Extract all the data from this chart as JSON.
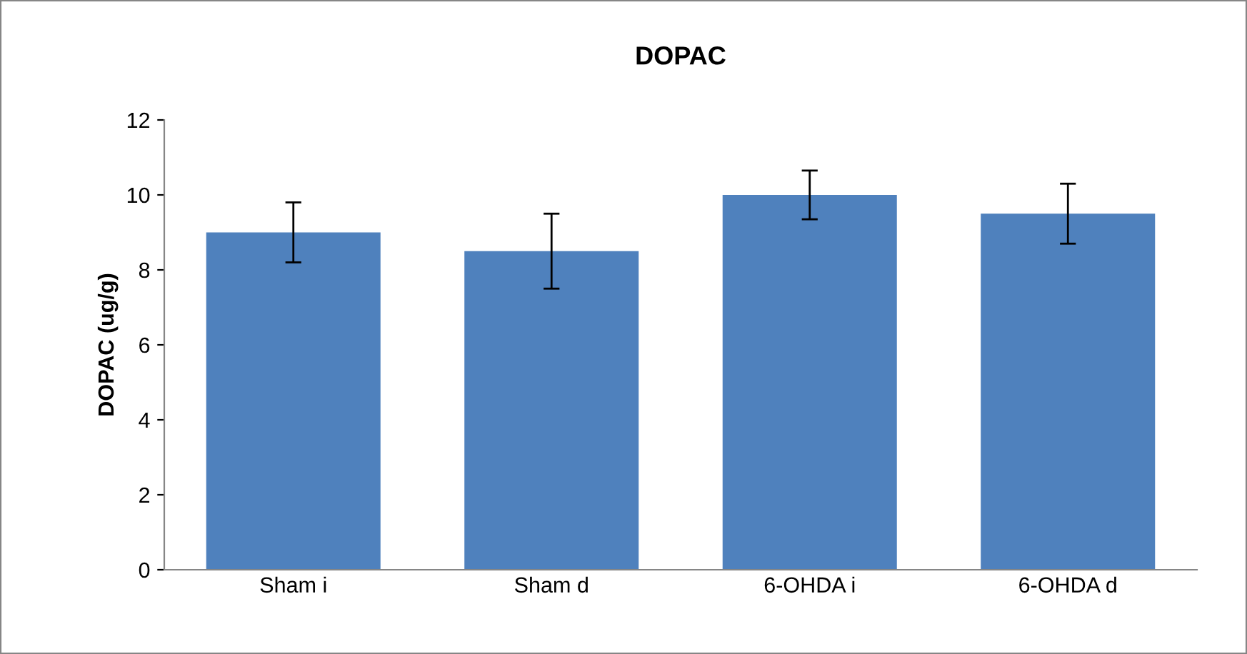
{
  "chart_data": {
    "type": "bar",
    "title": "DOPAC",
    "ylabel": "DOPAC (ug/g)",
    "categories": [
      "Sham i",
      "Sham d",
      "6-OHDA i",
      "6-OHDA d"
    ],
    "values": [
      9.0,
      8.5,
      10.0,
      9.5
    ],
    "errors": [
      0.8,
      1.0,
      0.65,
      0.8
    ],
    "color": "#4f81bd",
    "ylim": [
      0,
      12
    ],
    "yticks": [
      0,
      2,
      4,
      6,
      8,
      10,
      12
    ],
    "grid": false,
    "legend": false
  }
}
